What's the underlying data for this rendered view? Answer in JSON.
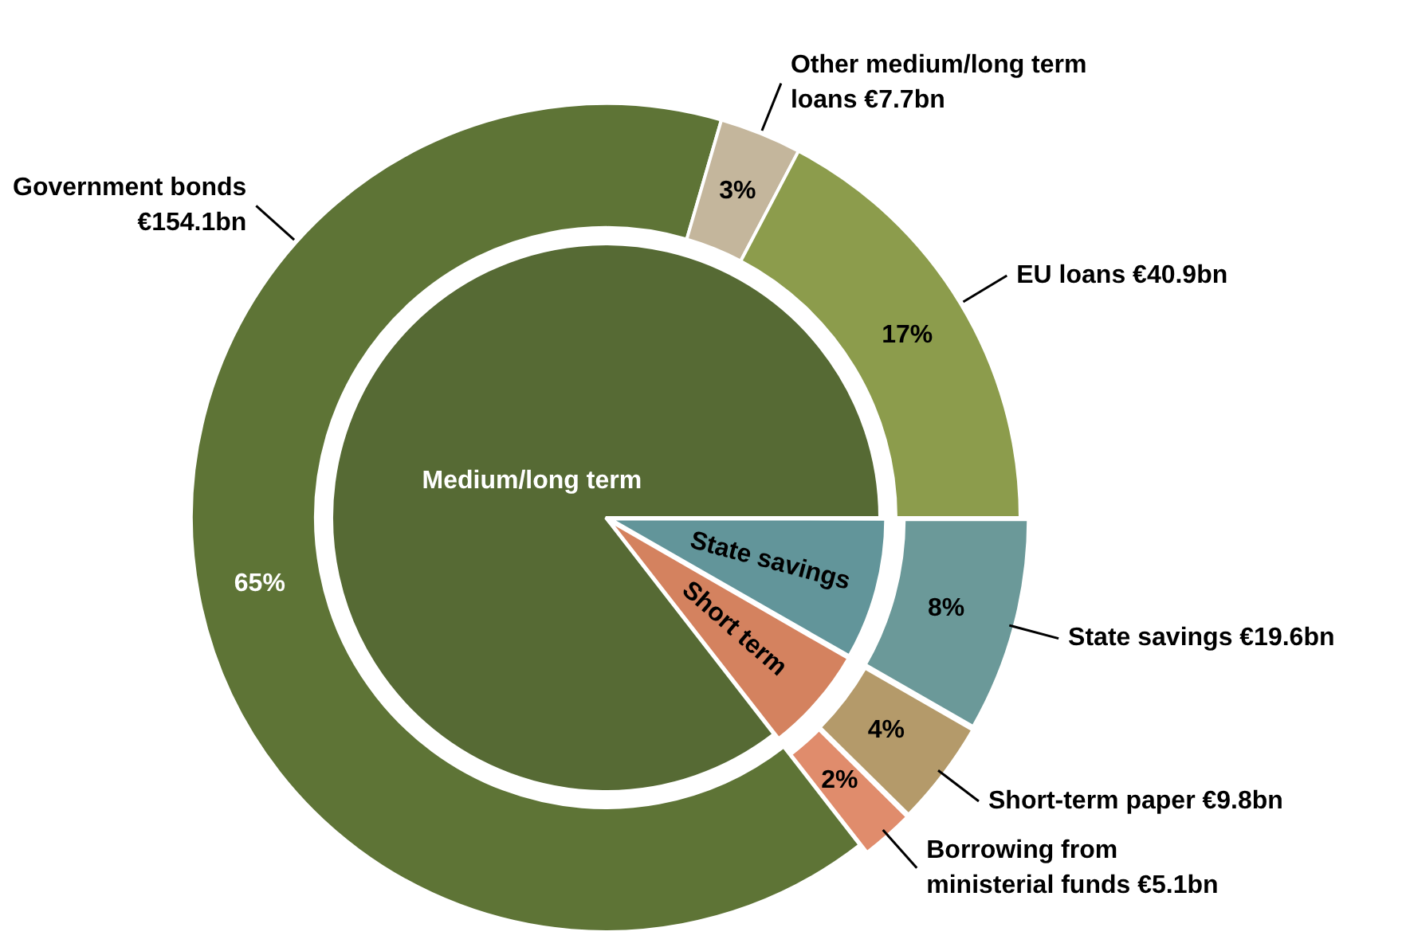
{
  "chart_data": [
    {
      "type": "donut",
      "categories": [
        "State savings €19.6bn",
        "Short-term paper €9.8bn",
        "Borrowing from ministerial funds €5.1bn",
        "Government bonds €154.1bn",
        "Other medium/long term loans €7.7bn",
        "EU loans €40.9bn"
      ],
      "values": [
        8.3,
        4.1,
        2.1,
        65.0,
        3.2,
        17.3
      ],
      "value_labels": [
        "8%",
        "4%",
        "2%",
        "65%",
        "3%",
        "17%"
      ],
      "colors": [
        "#6b9999",
        "#b49a6a",
        "#e08c6c",
        "#5e7436",
        "#c4b69c",
        "#8c9c4c"
      ],
      "legend": false
    },
    {
      "type": "pie",
      "categories": [
        "State savings",
        "Short term",
        "Medium/long term"
      ],
      "values": [
        8.3,
        6.2,
        85.5
      ],
      "colors": [
        "#62959a",
        "#d4825f",
        "#566a34"
      ],
      "legend": false
    }
  ]
}
